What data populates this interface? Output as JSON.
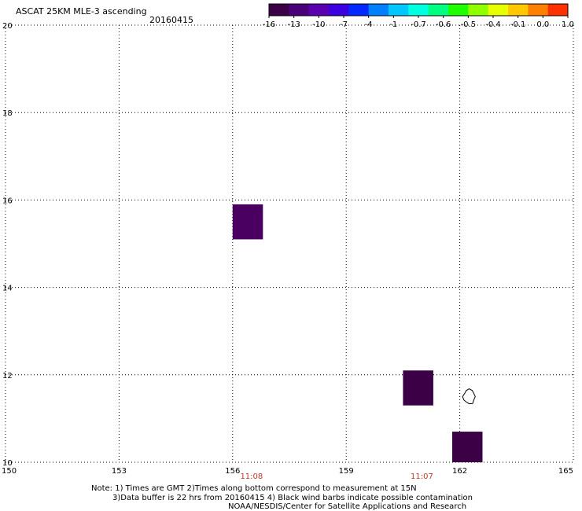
{
  "header": {
    "title": "ASCAT 25KM MLE-3 ascending",
    "date": "20160415"
  },
  "colorbar": {
    "colors": [
      "#3b0046",
      "#4a0078",
      "#5a00b0",
      "#3a00e0",
      "#0028ff",
      "#0080ff",
      "#00c8ff",
      "#00ffe0",
      "#00ff80",
      "#20ff00",
      "#90ff00",
      "#e8ff00",
      "#ffc800",
      "#ff8000",
      "#ff3000"
    ],
    "labels": [
      "-16",
      "-13",
      "-10",
      "-7",
      "-4",
      "-1",
      "-0.7",
      "-0.6",
      "-0.5",
      "-0.4",
      "-0.1",
      "0.0",
      "1.0"
    ]
  },
  "axes": {
    "x_ticks": [
      "150",
      "153",
      "156",
      "159",
      "162",
      "165"
    ],
    "y_ticks": [
      "20",
      "18",
      "16",
      "14",
      "12",
      "10"
    ],
    "time_labels": [
      {
        "text": "11:08",
        "lon": 156.5
      },
      {
        "text": "11:07",
        "lon": 161.0
      }
    ]
  },
  "map_data": {
    "lon_range": [
      150,
      165
    ],
    "lat_range": [
      10,
      20
    ],
    "cells": [
      {
        "lon_min": 156.0,
        "lon_max": 156.8,
        "lat_min": 15.1,
        "lat_max": 15.9,
        "color": "#4a0060"
      },
      {
        "lon_min": 160.5,
        "lon_max": 161.3,
        "lat_min": 11.3,
        "lat_max": 12.1,
        "color": "#3b0046"
      },
      {
        "lon_min": 161.8,
        "lon_max": 162.6,
        "lat_min": 10.0,
        "lat_max": 10.7,
        "color": "#3b0046"
      }
    ],
    "contour_center": {
      "lon": 162.25,
      "lat": 11.5
    }
  },
  "notes": {
    "line1": "Note: 1) Times are GMT 2)Times along bottom correspond to measurement at 15N",
    "line2": "3)Data buffer is 22 hrs from 20160415 4) Black wind barbs indicate possible contamination",
    "line3": "NOAA/NESDIS/Center for Satellite Applications and Research"
  }
}
